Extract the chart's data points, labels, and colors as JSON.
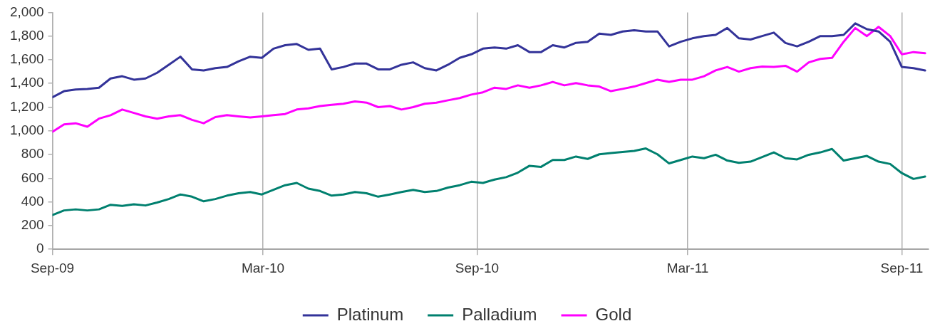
{
  "chart_data": {
    "type": "line",
    "x": [
      "2009-09-01",
      "2009-09-11",
      "2009-09-21",
      "2009-10-01",
      "2009-10-11",
      "2009-10-21",
      "2009-10-31",
      "2009-11-10",
      "2009-11-20",
      "2009-11-30",
      "2009-12-10",
      "2009-12-20",
      "2009-12-30",
      "2010-01-09",
      "2010-01-19",
      "2010-01-29",
      "2010-02-08",
      "2010-02-18",
      "2010-02-28",
      "2010-03-10",
      "2010-03-20",
      "2010-03-30",
      "2010-04-09",
      "2010-04-19",
      "2010-04-29",
      "2010-05-09",
      "2010-05-19",
      "2010-05-29",
      "2010-06-08",
      "2010-06-18",
      "2010-06-28",
      "2010-07-08",
      "2010-07-18",
      "2010-07-28",
      "2010-08-07",
      "2010-08-17",
      "2010-08-27",
      "2010-09-06",
      "2010-09-16",
      "2010-09-26",
      "2010-10-06",
      "2010-10-16",
      "2010-10-26",
      "2010-11-05",
      "2010-11-15",
      "2010-11-25",
      "2010-12-05",
      "2010-12-15",
      "2010-12-25",
      "2011-01-04",
      "2011-01-14",
      "2011-01-24",
      "2011-02-03",
      "2011-02-13",
      "2011-02-23",
      "2011-03-05",
      "2011-03-15",
      "2011-03-25",
      "2011-04-04",
      "2011-04-14",
      "2011-04-24",
      "2011-05-04",
      "2011-05-14",
      "2011-05-24",
      "2011-06-03",
      "2011-06-13",
      "2011-06-23",
      "2011-07-03",
      "2011-07-13",
      "2011-07-23",
      "2011-08-02",
      "2011-08-12",
      "2011-08-22",
      "2011-09-01",
      "2011-09-11",
      "2011-09-21"
    ],
    "series": [
      {
        "name": "Platinum",
        "color": "#333399",
        "values": [
          1283,
          1335,
          1349,
          1354,
          1364,
          1442,
          1461,
          1432,
          1442,
          1490,
          1558,
          1626,
          1519,
          1510,
          1529,
          1539,
          1587,
          1626,
          1616,
          1694,
          1723,
          1733,
          1684,
          1694,
          1519,
          1539,
          1568,
          1568,
          1519,
          1519,
          1558,
          1578,
          1529,
          1510,
          1558,
          1616,
          1646,
          1694,
          1704,
          1694,
          1723,
          1665,
          1665,
          1723,
          1704,
          1743,
          1752,
          1820,
          1810,
          1839,
          1849,
          1839,
          1839,
          1713,
          1752,
          1781,
          1800,
          1810,
          1868,
          1781,
          1771,
          1800,
          1829,
          1742,
          1713,
          1752,
          1800,
          1800,
          1810,
          1907,
          1858,
          1839,
          1752,
          1539,
          1529,
          1510
        ]
      },
      {
        "name": "Palladium",
        "color": "#00806f",
        "values": [
          289,
          328,
          337,
          328,
          337,
          376,
          366,
          380,
          370,
          395,
          424,
          463,
          444,
          405,
          424,
          453,
          473,
          483,
          463,
          502,
          541,
          560,
          512,
          492,
          453,
          463,
          483,
          473,
          444,
          463,
          483,
          502,
          483,
          492,
          521,
          541,
          570,
          560,
          589,
          609,
          647,
          705,
          696,
          754,
          754,
          783,
          763,
          802,
          812,
          822,
          831,
          851,
          802,
          725,
          754,
          783,
          769,
          798,
          749,
          730,
          740,
          779,
          818,
          769,
          759,
          798,
          818,
          847,
          749,
          769,
          788,
          740,
          720,
          643,
          594,
          614
        ]
      },
      {
        "name": "Gold",
        "color": "#ff00ff",
        "values": [
          992,
          1054,
          1064,
          1035,
          1103,
          1132,
          1180,
          1151,
          1122,
          1103,
          1122,
          1132,
          1093,
          1064,
          1116,
          1132,
          1122,
          1113,
          1122,
          1132,
          1142,
          1180,
          1190,
          1209,
          1219,
          1229,
          1248,
          1238,
          1200,
          1209,
          1180,
          1200,
          1229,
          1238,
          1258,
          1277,
          1306,
          1325,
          1364,
          1354,
          1384,
          1364,
          1384,
          1413,
          1384,
          1403,
          1384,
          1374,
          1335,
          1354,
          1374,
          1403,
          1432,
          1413,
          1432,
          1432,
          1461,
          1510,
          1539,
          1500,
          1529,
          1543,
          1539,
          1549,
          1500,
          1578,
          1607,
          1616,
          1752,
          1868,
          1800,
          1878,
          1800,
          1646,
          1665,
          1655
        ]
      }
    ],
    "xlim": [
      "2009-09-01",
      "2011-09-24"
    ],
    "xticks": [
      {
        "value": "2009-09-01",
        "label": "Sep-09"
      },
      {
        "value": "2010-03-01",
        "label": "Mar-10"
      },
      {
        "value": "2010-09-01",
        "label": "Sep-10"
      },
      {
        "value": "2011-03-01",
        "label": "Mar-11"
      },
      {
        "value": "2011-09-01",
        "label": "Sep-11"
      }
    ],
    "ylim": [
      0,
      2000
    ],
    "yticks": [
      0,
      200,
      400,
      600,
      800,
      {
        "value": 1000,
        "label": "1,000"
      },
      {
        "value": 1200,
        "label": "1,200"
      },
      {
        "value": 1400,
        "label": "1,400"
      },
      {
        "value": 1600,
        "label": "1,600"
      },
      {
        "value": 1800,
        "label": "1,800"
      },
      {
        "value": 2000,
        "label": "2,000"
      }
    ],
    "grid": "x",
    "legend": "bottom",
    "marker": "none",
    "line_style": "solid"
  }
}
